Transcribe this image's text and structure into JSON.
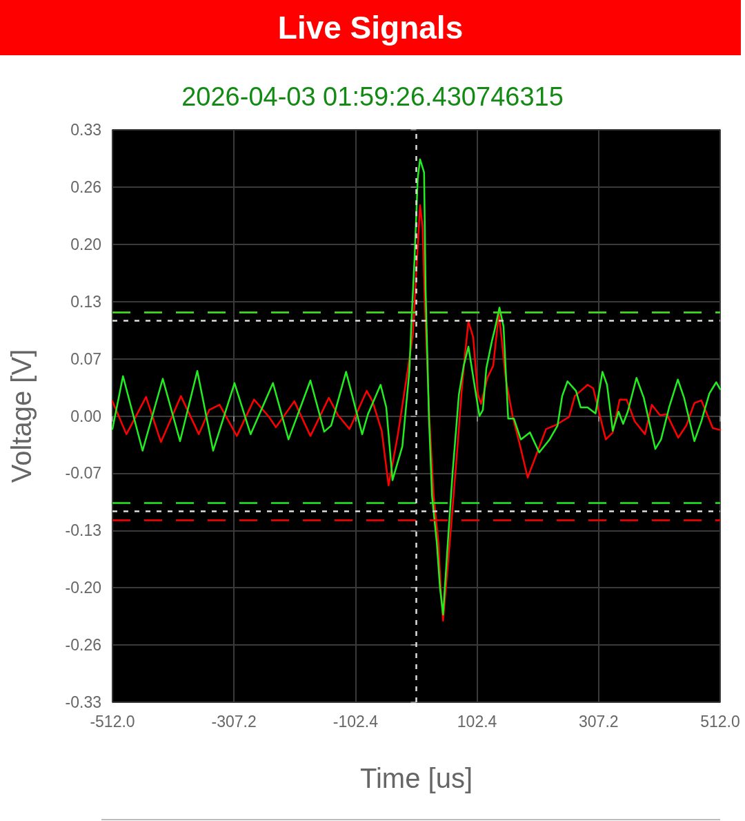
{
  "chart_data": {
    "type": "line",
    "title": "Live Signals",
    "subtitle": "2026-04-03 01:59:26.430746315",
    "xlabel": "Time [us]",
    "ylabel": "Voltage [V]",
    "xlim": [
      -512,
      512
    ],
    "xticks": [
      {
        "value": -512,
        "label": "-512.0"
      },
      -307.2,
      -102.4,
      102.4,
      307.2,
      {
        "value": 512,
        "label": "512.0"
      }
    ],
    "ylim": [
      -0.33,
      0.33
    ],
    "yticks": [
      -0.33,
      {
        "value": -0.264,
        "label": "-0.26"
      },
      {
        "value": -0.198,
        "label": "-0.20"
      },
      {
        "value": -0.132,
        "label": "-0.13"
      },
      {
        "value": -0.066,
        "label": "-0.07"
      },
      {
        "value": 0,
        "label": "0.00"
      },
      {
        "value": 0.066,
        "label": "0.07"
      },
      {
        "value": 0.132,
        "label": "0.13"
      },
      {
        "value": 0.198,
        "label": "0.20"
      },
      {
        "value": 0.264,
        "label": "0.26"
      },
      0.33
    ],
    "grid": true,
    "marker": "none",
    "series": [
      {
        "color": "#ff0000",
        "x": [
          -512,
          -488.4,
          -455.4,
          -430.3,
          -396.6,
          -366.4,
          -348.9,
          -331.5,
          -302.4,
          -273.4,
          -248.2,
          -236.5,
          -205.5,
          -178.4,
          -147.4,
          -131.9,
          -112.5,
          -83.5,
          -73.8,
          -58.3,
          -46.7,
          -31.2,
          -15.7,
          -5.8,
          -0.2,
          6.3,
          10.5,
          14.8,
          22,
          29.2,
          37.2,
          41.4,
          45.1,
          58.5,
          69.2,
          77.2,
          82.4,
          87.8,
          95.8,
          103.8,
          109.1,
          119.8,
          129.6,
          139.2,
          150.9,
          162.5,
          174.1,
          187.7,
          203.2,
          218.7,
          236.2,
          257.5,
          267.1,
          278.7,
          288.5,
          298.1,
          305.9,
          315.6,
          319.4,
          331,
          342.6,
          354.3,
          367.9,
          385.3,
          396.9,
          410.5,
          422.2,
          441.4,
          455,
          468.6,
          480.3,
          499.6,
          512
        ],
        "values": [
          0.017,
          -0.021,
          0.022,
          -0.03,
          0.023,
          -0.021,
          0.007,
          0.013,
          -0.023,
          0.019,
          -0.001,
          -0.013,
          0.017,
          -0.023,
          0.021,
          0.001,
          -0.015,
          0.029,
          0.017,
          -0.017,
          -0.08,
          -0.022,
          0.047,
          0.094,
          0.164,
          0.243,
          0.219,
          0.124,
          -0.002,
          -0.092,
          -0.146,
          -0.201,
          -0.236,
          -0.128,
          -0.037,
          0.036,
          0.073,
          0.109,
          0.091,
          0.025,
          0.014,
          0.044,
          0.058,
          0.119,
          0.042,
          -0.001,
          -0.032,
          -0.071,
          -0.043,
          -0.015,
          -0.01,
          -0.001,
          0.023,
          0.03,
          0.036,
          0.032,
          0.01,
          -0.017,
          -0.027,
          -0.019,
          0.019,
          0.019,
          -0.006,
          -0.021,
          0.013,
          0.001,
          0.002,
          -0.025,
          -0.011,
          0.015,
          0.018,
          -0.014,
          -0.016
        ]
      },
      {
        "color": "#22ee22",
        "x": [
          -512,
          -494.2,
          -461.2,
          -427.2,
          -398.1,
          -369,
          -342.3,
          -306.3,
          -279.2,
          -241.5,
          -215.3,
          -178.4,
          -155.2,
          -143.5,
          -118.3,
          -91.2,
          -81.6,
          -60.2,
          -50.6,
          -40.1,
          -23.5,
          -11.9,
          -8.1,
          -2.9,
          2.4,
          6.3,
          13.1,
          15.7,
          21.2,
          26.5,
          34.5,
          39.9,
          45.1,
          53.1,
          61.1,
          71.8,
          79.9,
          87.8,
          103.8,
          106.5,
          112.2,
          118,
          127.6,
          131.6,
          140.1,
          147,
          154.8,
          164.5,
          176.1,
          191.5,
          207.1,
          224.6,
          238,
          245.8,
          254.8,
          269.1,
          276.9,
          288.5,
          302,
          313.6,
          321.4,
          331,
          340.8,
          348.5,
          356.3,
          371,
          383.3,
          402.8,
          412.4,
          426,
          440.7,
          451.2,
          468.6,
          480.3,
          493.8,
          505.4,
          512
        ],
        "values": [
          -0.015,
          0.046,
          -0.04,
          0.043,
          -0.029,
          0.052,
          -0.04,
          0.038,
          -0.021,
          0.038,
          -0.027,
          0.041,
          -0.018,
          -0.011,
          0.051,
          -0.021,
          0.002,
          0.036,
          0.01,
          -0.074,
          -0.035,
          0.05,
          0.109,
          0.182,
          0.274,
          0.296,
          0.281,
          0.146,
          0.0,
          -0.092,
          -0.146,
          -0.198,
          -0.229,
          -0.146,
          -0.066,
          0.025,
          0.058,
          0.08,
          0.011,
          0.0,
          0.007,
          0.055,
          0.087,
          0.098,
          0.125,
          0.103,
          -0.003,
          -0.003,
          -0.027,
          -0.019,
          -0.042,
          -0.027,
          -0.011,
          0.023,
          0.04,
          0.029,
          0.01,
          0.01,
          0.003,
          0.051,
          0.036,
          -0.017,
          0.005,
          -0.009,
          0.005,
          0.044,
          0.021,
          -0.038,
          -0.027,
          0.01,
          0.042,
          0.021,
          -0.029,
          -0.006,
          0.026,
          0.039,
          0.031
        ]
      }
    ],
    "ref_lines": [
      {
        "axis": "y",
        "value": 0.12,
        "color": "#ff0000",
        "line_style": "dashed"
      },
      {
        "axis": "y",
        "value": 0.117,
        "color": "#22ee22",
        "line_style": "dashed"
      },
      {
        "axis": "y",
        "value": 0.11,
        "color": "#dddddd",
        "line_style": "dotted"
      },
      {
        "axis": "y",
        "value": -0.102,
        "color": "#22ee22",
        "line_style": "dashed"
      },
      {
        "axis": "y",
        "value": -0.109,
        "color": "#dddddd",
        "line_style": "dotted"
      },
      {
        "axis": "y",
        "value": -0.121,
        "color": "#ff0000",
        "line_style": "dashed"
      },
      {
        "axis": "x",
        "value": 0,
        "color": "#dddddd",
        "line_style": "dotted"
      }
    ]
  }
}
